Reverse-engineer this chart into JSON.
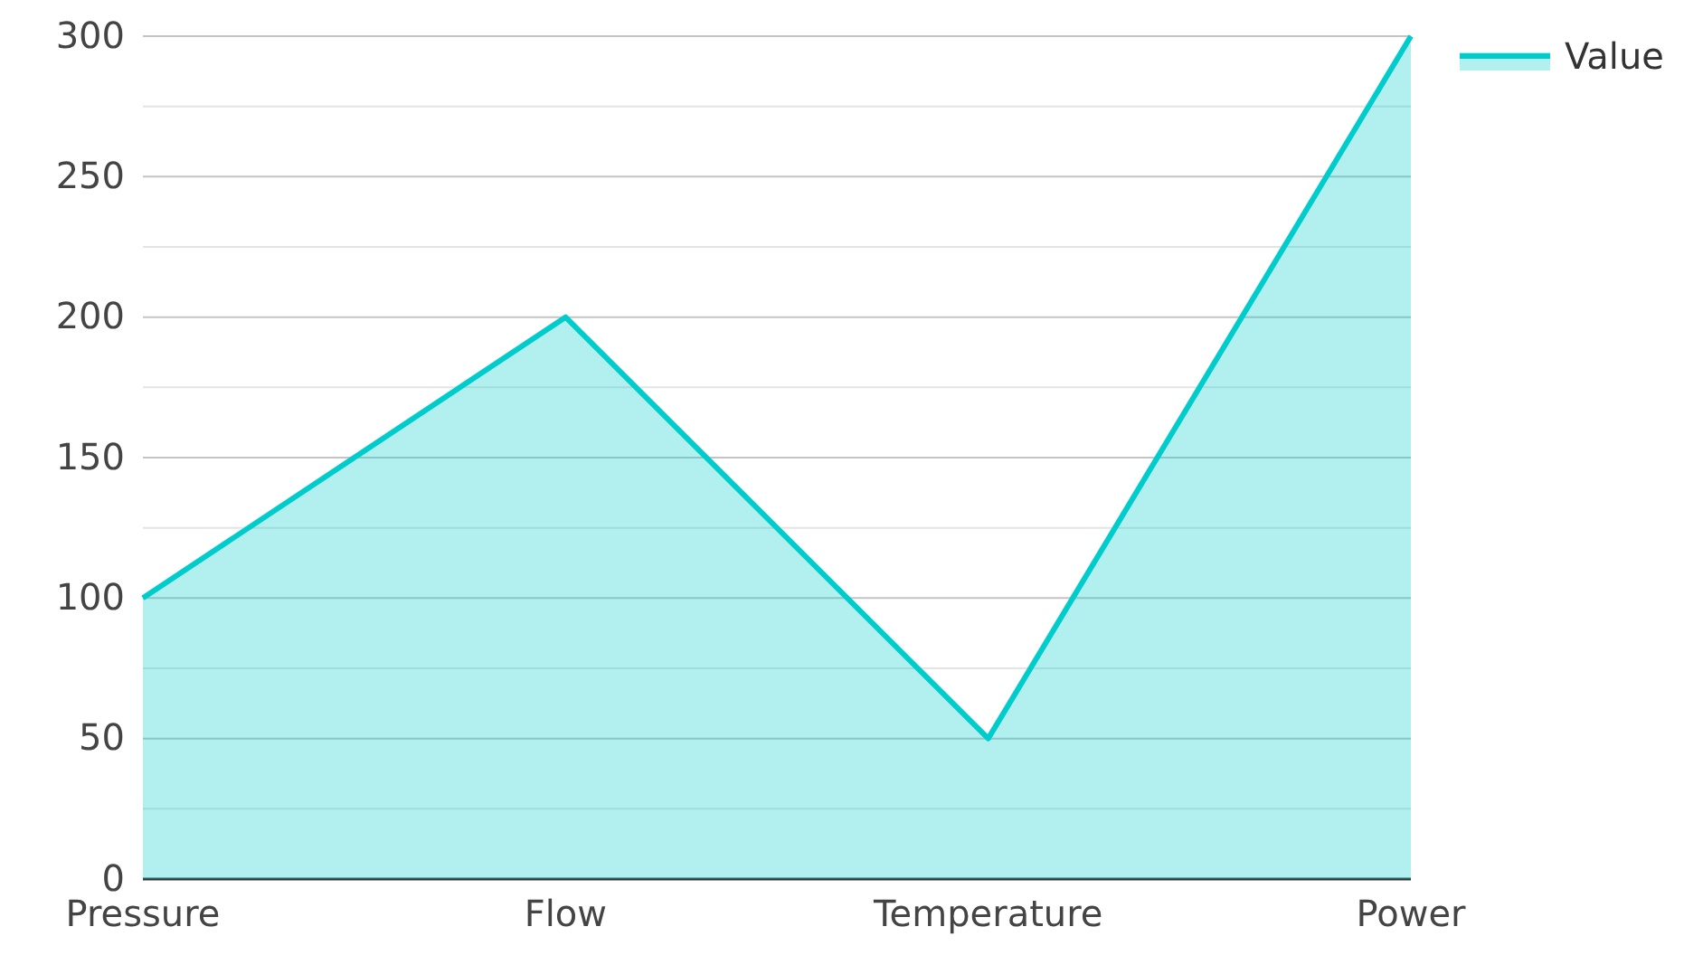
{
  "chart_data": {
    "type": "area",
    "categories": [
      "Pressure",
      "Flow",
      "Temperature",
      "Power"
    ],
    "series": [
      {
        "name": "Value",
        "color": "#00cccc",
        "values": [
          100,
          200,
          50,
          300
        ]
      }
    ],
    "ylim": [
      0,
      300
    ],
    "yticks": [
      0,
      {
        "value": 25,
        "label": null
      },
      50,
      {
        "value": 75,
        "label": null
      },
      100,
      {
        "value": 125,
        "label": null
      },
      150,
      {
        "value": 175,
        "label": null
      },
      200,
      {
        "value": 225,
        "label": null
      },
      250,
      {
        "value": 275,
        "label": null
      },
      300
    ],
    "grid": "y",
    "legend": "top right"
  }
}
